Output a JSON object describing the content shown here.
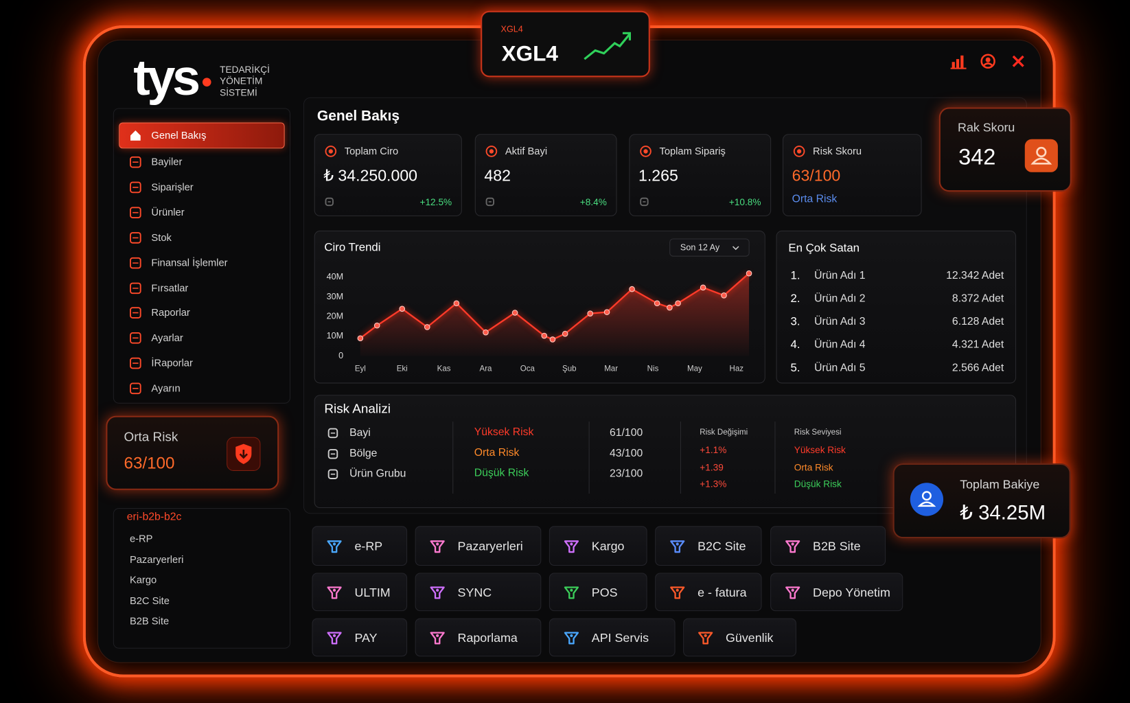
{
  "header": {
    "badge_small": "XGL4",
    "badge_title": "XGL4"
  },
  "brand": {
    "logo": "tys",
    "subtitle": [
      "TEDARİKÇİ",
      "YÖNETİM",
      "SİSTEMİ"
    ]
  },
  "sidebar": {
    "menu": [
      "Genel Bakış",
      "Bayiler",
      "Siparişler",
      "Ürünler",
      "Stok",
      "Finansal İşlemler",
      "Fırsatlar",
      "Raporlar",
      "Ayarlar",
      "İRaporlar",
      "Ayarın"
    ],
    "risk_card": {
      "title": "Orta Risk",
      "score": "63/100"
    },
    "section": {
      "title": "eri-b2b-b2c",
      "items": [
        "e-RP",
        "Pazaryerleri",
        "Kargo",
        "B2C Site",
        "B2B Site"
      ]
    }
  },
  "overview": {
    "title": "Genel Bakış",
    "kpis": [
      {
        "label": "Toplam Ciro",
        "value": "₺ 34.250.000",
        "change": "+12.5%"
      },
      {
        "label": "Aktif Bayi",
        "value": "482",
        "change": "+8.4%"
      },
      {
        "label": "Toplam Sipariş",
        "value": "1.265",
        "change": "+10.8%"
      },
      {
        "label": "Risk Skoru",
        "value": "63/100",
        "note": "Orta Risk"
      }
    ]
  },
  "rak_skoru": {
    "label": "Rak Skoru",
    "value": "342"
  },
  "chart_data": {
    "type": "line",
    "title": "Ciro Trendi",
    "filter": "Son 12 Ay",
    "color": "#ff3b2a",
    "x": [
      0,
      0.4,
      1.0,
      1.6,
      2.3,
      3.0,
      3.7,
      4.4,
      4.6,
      4.9,
      5.5,
      5.9,
      6.5,
      7.1,
      7.4,
      7.6,
      8.2,
      8.7,
      9.3
    ],
    "values": [
      9,
      15.5,
      24,
      14.7,
      26.8,
      12,
      22,
      10.3,
      8.4,
      11.3,
      21.6,
      22.3,
      34,
      26.8,
      24.6,
      26.8,
      34.8,
      30.8,
      42
    ],
    "xlim": [
      -0.2,
      9.4
    ],
    "xticks": [
      {
        "value": 0,
        "label": "Eyl"
      },
      {
        "value": 1,
        "label": "Eki"
      },
      {
        "value": 2,
        "label": "Kas"
      },
      {
        "value": 3,
        "label": "Ara"
      },
      {
        "value": 4,
        "label": "Oca"
      },
      {
        "value": 5,
        "label": "Şub"
      },
      {
        "value": 6,
        "label": "Mar"
      },
      {
        "value": 7,
        "label": "Nis"
      },
      {
        "value": 8,
        "label": "May"
      },
      {
        "value": 9,
        "label": "Haz"
      }
    ],
    "ylim": [
      0,
      43
    ],
    "yticks": [
      0,
      {
        "value": 10,
        "label": "10M"
      },
      {
        "value": 20,
        "label": "20M"
      },
      {
        "value": 30,
        "label": "30M"
      },
      {
        "value": 40,
        "label": "40M"
      }
    ]
  },
  "top_sellers": {
    "title": "En Çok Satan",
    "rows": [
      [
        "1.",
        "Ürün Adı 1",
        "12.342 Adet"
      ],
      [
        "2.",
        "Ürün Adı 2",
        "8.372 Adet"
      ],
      [
        "3.",
        "Ürün Adı 3",
        "6.128 Adet"
      ],
      [
        "4.",
        "Ürün Adı 4",
        "4.321 Adet"
      ],
      [
        "5.",
        "Ürün Adı 5",
        "2.566 Adet"
      ]
    ]
  },
  "risk_analysis": {
    "title": "Risk Analizi",
    "rows": [
      {
        "name": "Bayi",
        "level": "Yüksek Risk",
        "score": "61/100"
      },
      {
        "name": "Bölge",
        "level": "Orta Risk",
        "score": "43/100"
      },
      {
        "name": "Ürün Grubu",
        "level": "Düşük Risk",
        "score": "23/100"
      }
    ],
    "change_header": "Risk Değişimi",
    "changes": [
      "+1.1%",
      "+1.39",
      "+1.3%"
    ],
    "level_header": "Risk Seviyesi",
    "levels": [
      "Yüksek Risk",
      "Orta Risk",
      "Düşük Risk"
    ]
  },
  "balance": {
    "label": "Toplam Bakiye",
    "value": "₺ 34.25M"
  },
  "apps": {
    "rows": [
      [
        "e-RP",
        "Pazaryerleri",
        "Kargo",
        "B2C Site",
        "B2B Site"
      ],
      [
        "ULTIM",
        "SYNC",
        "POS",
        "e - fatura",
        "Depo Yönetim"
      ],
      [
        "PAY",
        "Raporlama",
        "API Servis",
        "Güvenlik"
      ]
    ]
  }
}
